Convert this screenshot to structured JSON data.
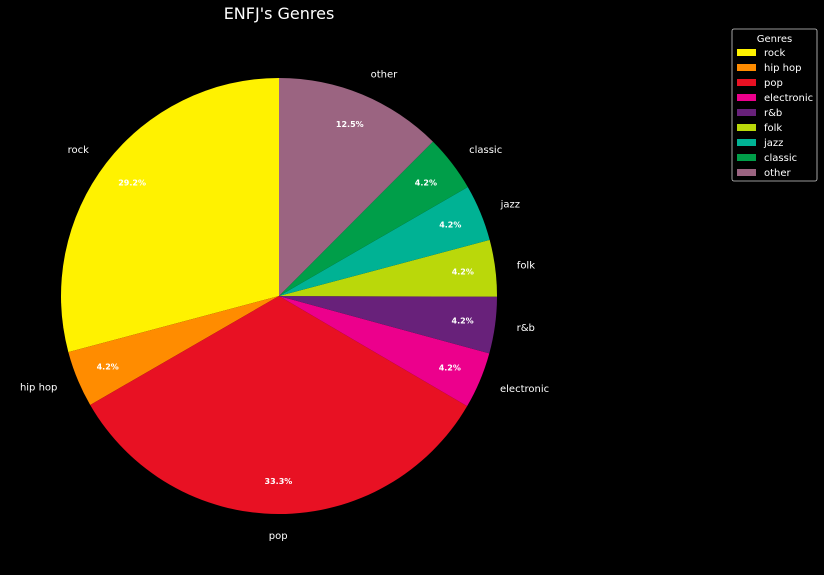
{
  "chart_data": {
    "type": "pie",
    "title": "ENFJ's Genres",
    "legend": {
      "title": "Genres",
      "placement": "upper-right-outside"
    },
    "start_angle_deg": 90,
    "direction": "counterclockwise",
    "slices": [
      {
        "label": "rock",
        "value": 29.2,
        "pct_label": "29.2%",
        "color": "#fff200"
      },
      {
        "label": "hip hop",
        "value": 4.2,
        "pct_label": "4.2%",
        "color": "#ff8c00"
      },
      {
        "label": "pop",
        "value": 33.3,
        "pct_label": "33.3%",
        "color": "#e81123"
      },
      {
        "label": "electronic",
        "value": 4.2,
        "pct_label": "4.2%",
        "color": "#ec008c"
      },
      {
        "label": "r&b",
        "value": 4.2,
        "pct_label": "4.2%",
        "color": "#68217a"
      },
      {
        "label": "folk",
        "value": 4.2,
        "pct_label": "4.2%",
        "color": "#bad80a"
      },
      {
        "label": "jazz",
        "value": 4.2,
        "pct_label": "4.2%",
        "color": "#00b294"
      },
      {
        "label": "classic",
        "value": 4.2,
        "pct_label": "4.2%",
        "color": "#009e49"
      },
      {
        "label": "other",
        "value": 12.5,
        "pct_label": "12.5%",
        "color": "#9b6481"
      }
    ]
  }
}
